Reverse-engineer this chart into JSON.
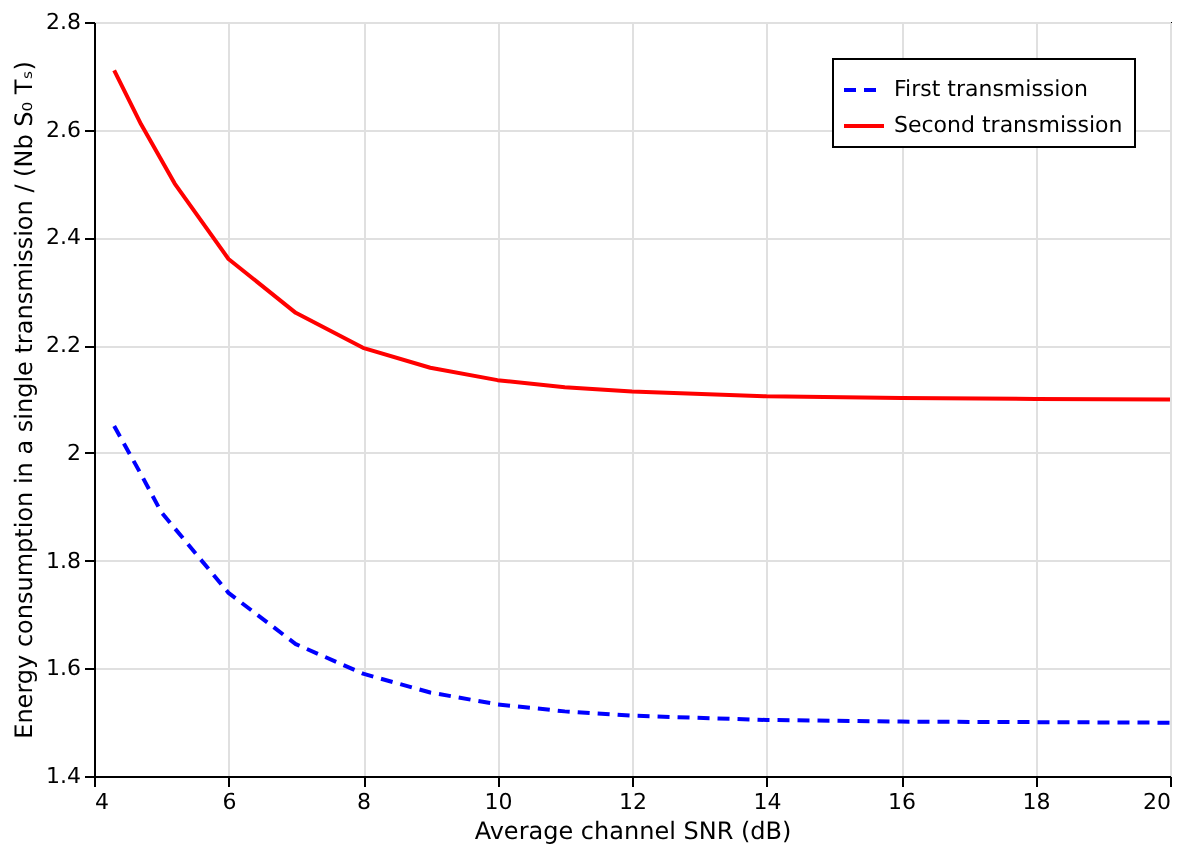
{
  "chart_data": {
    "type": "line",
    "xlabel": "Average channel SNR (dB)",
    "ylabel": "Energy consumption in a single transmission / (Nb S₀ Tₛ)",
    "xlim": [
      4,
      20
    ],
    "ylim": [
      1.4,
      2.8
    ],
    "xticks": [
      4,
      6,
      8,
      10,
      12,
      14,
      16,
      18,
      20
    ],
    "yticks": [
      1.4,
      1.6,
      1.8,
      2,
      2.2,
      2.4,
      2.6,
      2.8
    ],
    "grid": true,
    "legend": "top right",
    "marker": "none",
    "series": [
      {
        "name": "First transmission",
        "color": "#0000ff",
        "line_style": "dashed",
        "x": [
          4.3,
          4.7,
          5,
          6,
          7,
          8,
          9,
          10,
          11,
          12,
          14,
          16,
          18,
          20
        ],
        "values": [
          2.05,
          1.96,
          1.89,
          1.74,
          1.645,
          1.59,
          1.555,
          1.533,
          1.52,
          1.512,
          1.504,
          1.501,
          1.5,
          1.499
        ]
      },
      {
        "name": "Second transmission",
        "color": "#ff0000",
        "line_style": "solid",
        "x": [
          4.3,
          4.7,
          5.2,
          6,
          7,
          8,
          9,
          10,
          11,
          12,
          14,
          16,
          18,
          20
        ],
        "values": [
          2.71,
          2.61,
          2.5,
          2.36,
          2.26,
          2.195,
          2.158,
          2.135,
          2.122,
          2.114,
          2.105,
          2.102,
          2.1,
          2.099
        ]
      }
    ]
  }
}
